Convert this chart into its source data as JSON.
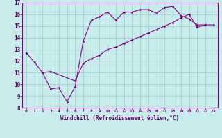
{
  "xlabel": "Windchill (Refroidissement éolien,°C)",
  "bg_color": "#c8ecec",
  "grid_color": "#aad4d4",
  "line_color": "#800080",
  "xlim": [
    -0.5,
    23.5
  ],
  "ylim": [
    8,
    17
  ],
  "xticks": [
    0,
    1,
    2,
    3,
    4,
    5,
    6,
    7,
    8,
    9,
    10,
    11,
    12,
    13,
    14,
    15,
    16,
    17,
    18,
    19,
    20,
    21,
    22,
    23
  ],
  "yticks": [
    8,
    9,
    10,
    11,
    12,
    13,
    14,
    15,
    16,
    17
  ],
  "series1_x": [
    0,
    1,
    2,
    3,
    4,
    5,
    6,
    7,
    8,
    9,
    10,
    11,
    12,
    13,
    14,
    15,
    16,
    17,
    18,
    19,
    20,
    21,
    22
  ],
  "series1_y": [
    12.7,
    11.9,
    11.0,
    9.6,
    9.7,
    8.5,
    9.8,
    13.7,
    15.5,
    15.8,
    16.2,
    15.5,
    16.2,
    16.2,
    16.4,
    16.4,
    16.1,
    16.6,
    16.7,
    15.9,
    15.6,
    15.1,
    15.1
  ],
  "series2_x": [
    2,
    3,
    6,
    7,
    8,
    9,
    10,
    11,
    12,
    13,
    14,
    15,
    16,
    17,
    18,
    19,
    20,
    21,
    22,
    23
  ],
  "series2_y": [
    11.0,
    11.1,
    10.3,
    11.8,
    12.2,
    12.5,
    13.0,
    13.2,
    13.5,
    13.8,
    14.1,
    14.4,
    14.7,
    15.0,
    15.3,
    15.7,
    16.0,
    14.9,
    15.1,
    15.1
  ]
}
